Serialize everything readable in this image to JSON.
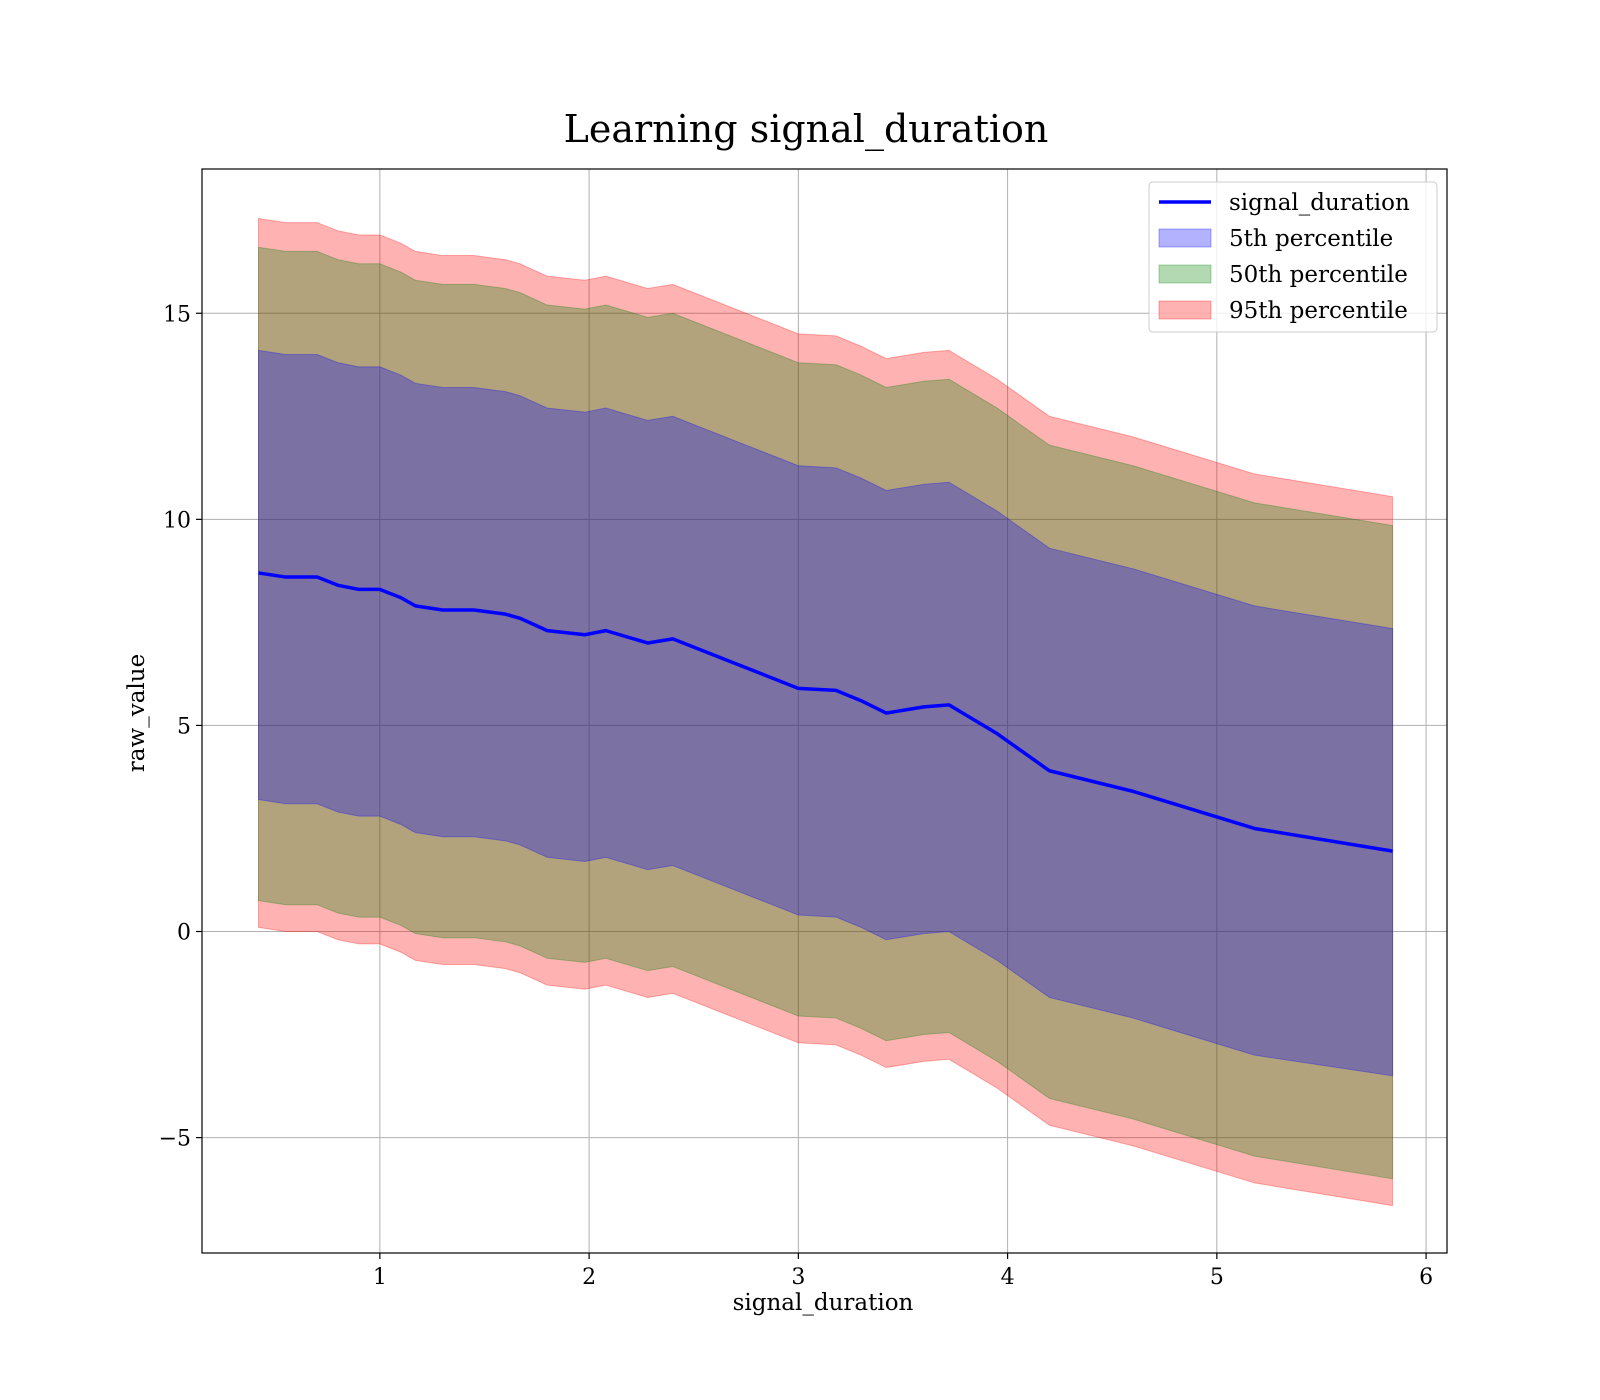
{
  "chart_data": {
    "type": "area",
    "title": "Learning signal_duration",
    "xlabel": "signal_duration",
    "ylabel": "raw_value",
    "xlim": [
      0.15,
      6.1
    ],
    "ylim": [
      -7.8,
      18.5
    ],
    "xticks": [
      1,
      2,
      3,
      4,
      5,
      6
    ],
    "xtick_labels": [
      "1",
      "2",
      "3",
      "4",
      "5",
      "6"
    ],
    "yticks": [
      -5,
      0,
      5,
      10,
      15
    ],
    "ytick_labels": [
      "−5",
      "0",
      "5",
      "10",
      "15"
    ],
    "grid": true,
    "legend_position": "top-right",
    "x": [
      0.42,
      0.55,
      0.7,
      0.8,
      0.9,
      1.0,
      1.1,
      1.17,
      1.3,
      1.45,
      1.6,
      1.67,
      1.8,
      1.98,
      2.08,
      2.28,
      2.4,
      2.55,
      2.7,
      2.85,
      3.0,
      3.18,
      3.3,
      3.42,
      3.6,
      3.72,
      3.95,
      4.2,
      4.6,
      5.18,
      5.84
    ],
    "series": [
      {
        "name": "signal_duration",
        "kind": "line",
        "color": "#0000ff",
        "values": [
          8.7,
          8.6,
          8.6,
          8.4,
          8.3,
          8.3,
          8.1,
          7.9,
          7.8,
          7.8,
          7.7,
          7.6,
          7.3,
          7.2,
          7.3,
          7.0,
          7.1,
          6.8,
          6.5,
          6.2,
          5.9,
          5.85,
          5.6,
          5.3,
          5.45,
          5.5,
          4.8,
          3.9,
          3.4,
          2.5,
          1.95
        ]
      },
      {
        "name": "5th percentile",
        "kind": "band",
        "color": "#0000ff",
        "lower": [
          3.2,
          3.1,
          3.1,
          2.9,
          2.8,
          2.8,
          2.6,
          2.4,
          2.3,
          2.3,
          2.2,
          2.1,
          1.8,
          1.7,
          1.8,
          1.5,
          1.6,
          1.3,
          1.0,
          0.7,
          0.4,
          0.35,
          0.1,
          -0.2,
          -0.05,
          0.0,
          -0.7,
          -1.6,
          -2.1,
          -3.0,
          -3.5
        ],
        "upper": [
          14.1,
          14.0,
          14.0,
          13.8,
          13.7,
          13.7,
          13.5,
          13.3,
          13.2,
          13.2,
          13.1,
          13.0,
          12.7,
          12.6,
          12.7,
          12.4,
          12.5,
          12.2,
          11.9,
          11.6,
          11.3,
          11.25,
          11.0,
          10.7,
          10.85,
          10.9,
          10.2,
          9.3,
          8.8,
          7.9,
          7.35
        ]
      },
      {
        "name": "50th percentile",
        "kind": "band",
        "color": "#008000",
        "lower": [
          0.75,
          0.65,
          0.65,
          0.45,
          0.35,
          0.35,
          0.15,
          -0.05,
          -0.15,
          -0.15,
          -0.25,
          -0.35,
          -0.65,
          -0.75,
          -0.65,
          -0.95,
          -0.85,
          -1.15,
          -1.45,
          -1.75,
          -2.05,
          -2.1,
          -2.35,
          -2.65,
          -2.5,
          -2.45,
          -3.15,
          -4.05,
          -4.55,
          -5.45,
          -6.0
        ],
        "upper": [
          16.6,
          16.5,
          16.5,
          16.3,
          16.2,
          16.2,
          16.0,
          15.8,
          15.7,
          15.7,
          15.6,
          15.5,
          15.2,
          15.1,
          15.2,
          14.9,
          15.0,
          14.7,
          14.4,
          14.1,
          13.8,
          13.75,
          13.5,
          13.2,
          13.35,
          13.4,
          12.7,
          11.8,
          11.3,
          10.4,
          9.85
        ]
      },
      {
        "name": "95th percentile",
        "kind": "band",
        "color": "#ff0000",
        "lower": [
          0.1,
          0.0,
          0.0,
          -0.2,
          -0.3,
          -0.3,
          -0.5,
          -0.7,
          -0.8,
          -0.8,
          -0.9,
          -1.0,
          -1.3,
          -1.4,
          -1.3,
          -1.6,
          -1.5,
          -1.8,
          -2.1,
          -2.4,
          -2.7,
          -2.75,
          -3.0,
          -3.3,
          -3.15,
          -3.1,
          -3.8,
          -4.7,
          -5.2,
          -6.1,
          -6.65
        ],
        "upper": [
          17.3,
          17.2,
          17.2,
          17.0,
          16.9,
          16.9,
          16.7,
          16.5,
          16.4,
          16.4,
          16.3,
          16.2,
          15.9,
          15.8,
          15.9,
          15.6,
          15.7,
          15.4,
          15.1,
          14.8,
          14.5,
          14.45,
          14.2,
          13.9,
          14.05,
          14.1,
          13.4,
          12.5,
          12.0,
          11.1,
          10.55
        ]
      }
    ]
  }
}
